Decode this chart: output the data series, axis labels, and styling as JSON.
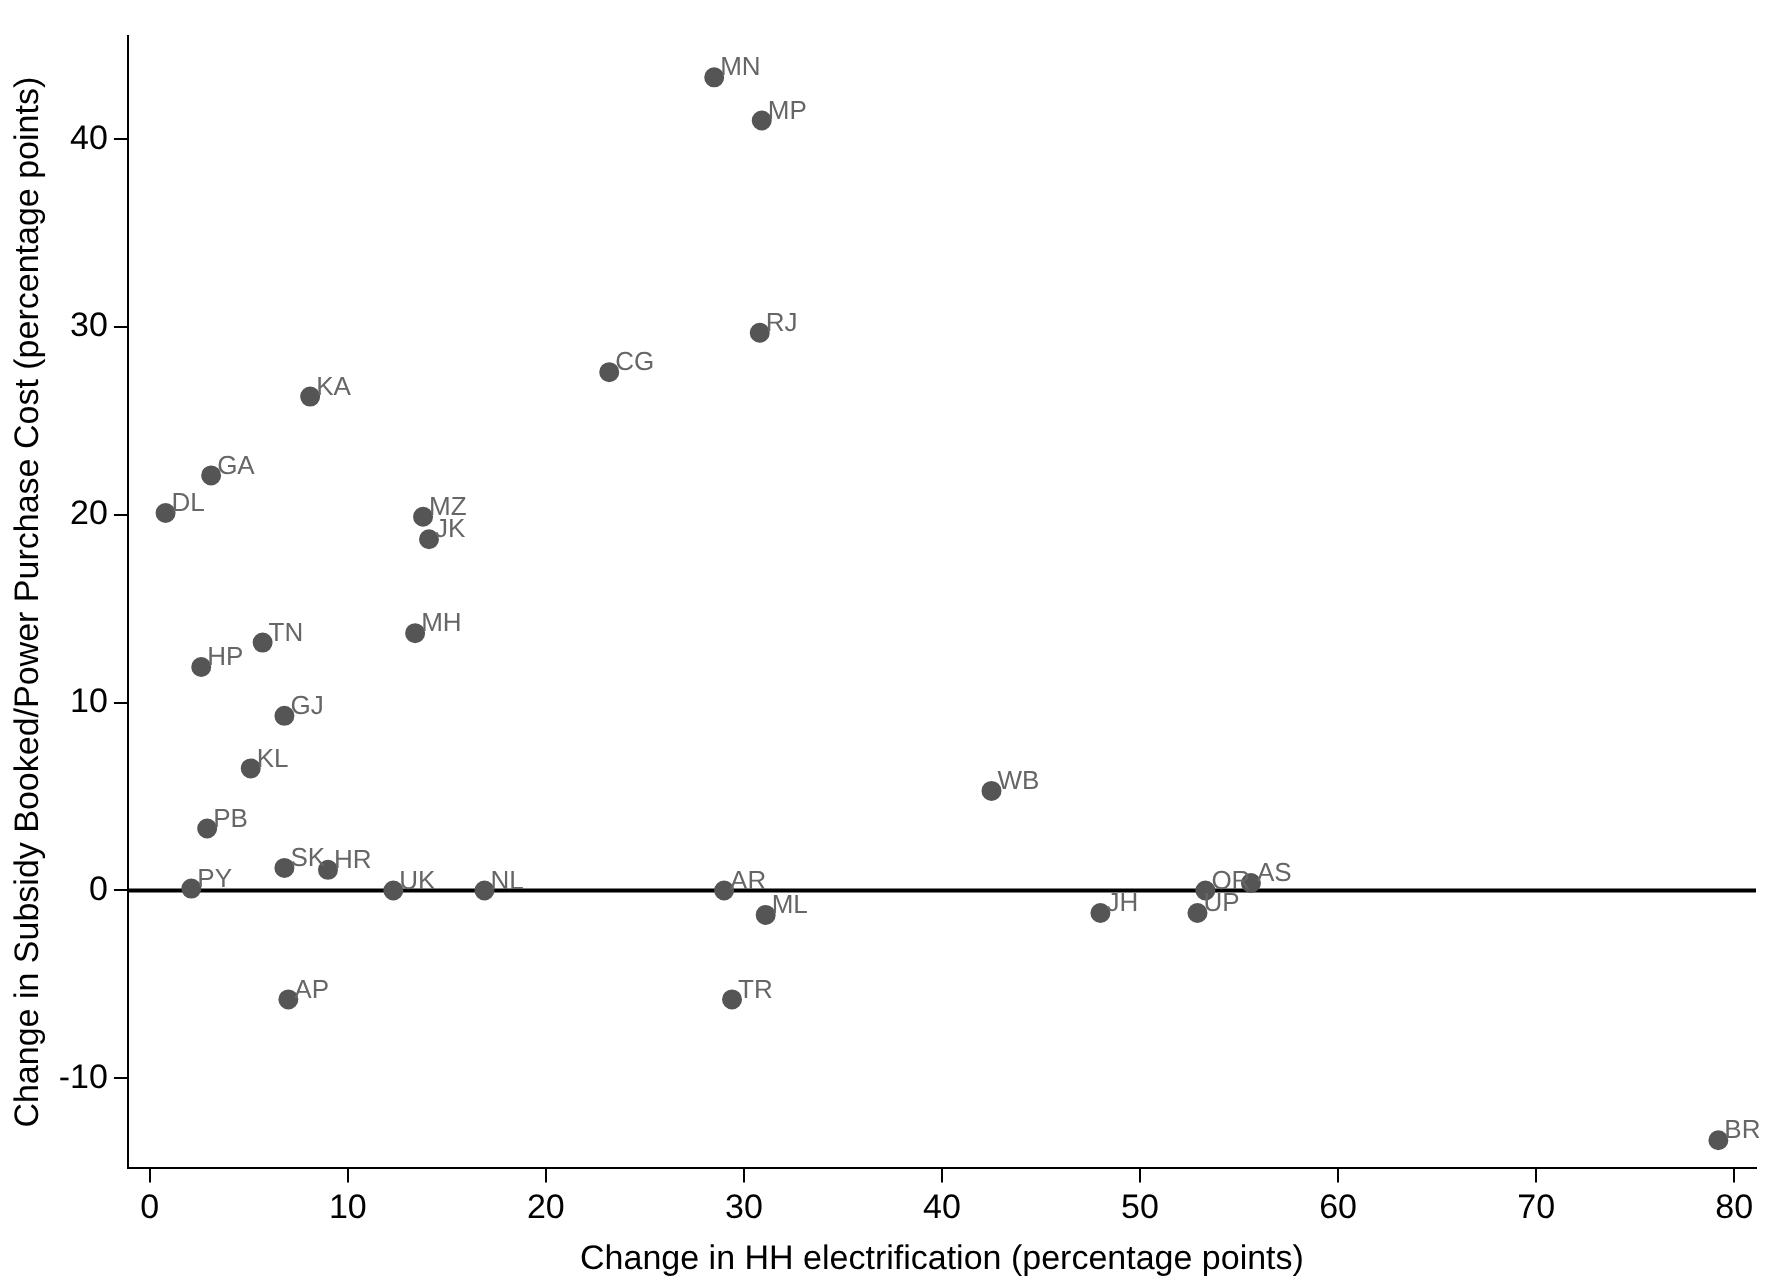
{
  "chart_data": {
    "type": "scatter",
    "xlabel": "Change in HH electrification (percentage points)",
    "ylabel": "Change in Subsidy Booked/Power Purchase Cost (percentage points)",
    "xlim": [
      -1.1,
      81.1
    ],
    "ylim": [
      -14.8,
      45.5
    ],
    "xticks": [
      0,
      10,
      20,
      30,
      40,
      50,
      60,
      70,
      80
    ],
    "yticks": [
      -10,
      0,
      10,
      20,
      30,
      40
    ],
    "grid": false,
    "legend": false,
    "marker": "circle",
    "series": [
      {
        "color": "#555555",
        "x": [
          28.5,
          30.9,
          30.8,
          23.2,
          8.1,
          3.1,
          0.8,
          13.8,
          14.1,
          13.4,
          5.7,
          2.6,
          6.8,
          5.1,
          2.9,
          6.8,
          9.0,
          2.1,
          12.3,
          16.9,
          29.0,
          31.1,
          7.0,
          29.4,
          42.5,
          48.0,
          53.3,
          52.9,
          55.6,
          79.2
        ],
        "values": [
          43.3,
          41.0,
          29.7,
          27.6,
          26.3,
          22.1,
          20.1,
          19.9,
          18.7,
          13.7,
          13.2,
          11.9,
          9.3,
          6.5,
          3.3,
          1.2,
          1.1,
          0.1,
          0,
          0,
          0,
          -1.3,
          -5.8,
          -5.8,
          5.3,
          -1.2,
          0,
          -1.2,
          0.4,
          -13.3
        ]
      }
    ],
    "ref_lines": [
      {
        "axis": "y",
        "value": 0,
        "color": "#000000"
      }
    ],
    "annotations": [
      {
        "text": "MN",
        "x": 28.5,
        "y": 43.3
      },
      {
        "text": "MP",
        "x": 30.9,
        "y": 41.0
      },
      {
        "text": "RJ",
        "x": 30.8,
        "y": 29.7
      },
      {
        "text": "CG",
        "x": 23.2,
        "y": 27.6
      },
      {
        "text": "KA",
        "x": 8.1,
        "y": 26.3
      },
      {
        "text": "GA",
        "x": 3.1,
        "y": 22.1
      },
      {
        "text": "DL",
        "x": 0.8,
        "y": 20.1
      },
      {
        "text": "MZ",
        "x": 13.8,
        "y": 19.9
      },
      {
        "text": "JK",
        "x": 14.1,
        "y": 18.7
      },
      {
        "text": "MH",
        "x": 13.4,
        "y": 13.7
      },
      {
        "text": "TN",
        "x": 5.7,
        "y": 13.2
      },
      {
        "text": "HP",
        "x": 2.6,
        "y": 11.9
      },
      {
        "text": "GJ",
        "x": 6.8,
        "y": 9.3
      },
      {
        "text": "KL",
        "x": 5.1,
        "y": 6.5
      },
      {
        "text": "PB",
        "x": 2.9,
        "y": 3.3
      },
      {
        "text": "SK",
        "x": 6.8,
        "y": 1.2
      },
      {
        "text": "HR",
        "x": 9.0,
        "y": 1.1
      },
      {
        "text": "PY",
        "x": 2.1,
        "y": 0.1
      },
      {
        "text": "UK",
        "x": 12.3,
        "y": 0
      },
      {
        "text": "NL",
        "x": 16.9,
        "y": 0
      },
      {
        "text": "AR",
        "x": 29.0,
        "y": 0
      },
      {
        "text": "ML",
        "x": 31.1,
        "y": -1.3
      },
      {
        "text": "AP",
        "x": 7.0,
        "y": -5.8
      },
      {
        "text": "TR",
        "x": 29.4,
        "y": -5.8
      },
      {
        "text": "WB",
        "x": 42.5,
        "y": 5.3
      },
      {
        "text": "JH",
        "x": 48.0,
        "y": -1.2
      },
      {
        "text": "OR",
        "x": 53.3,
        "y": 0
      },
      {
        "text": "UP",
        "x": 52.9,
        "y": -1.2
      },
      {
        "text": "AS",
        "x": 55.6,
        "y": 0.4
      },
      {
        "text": "BR",
        "x": 79.2,
        "y": -13.3
      }
    ]
  }
}
